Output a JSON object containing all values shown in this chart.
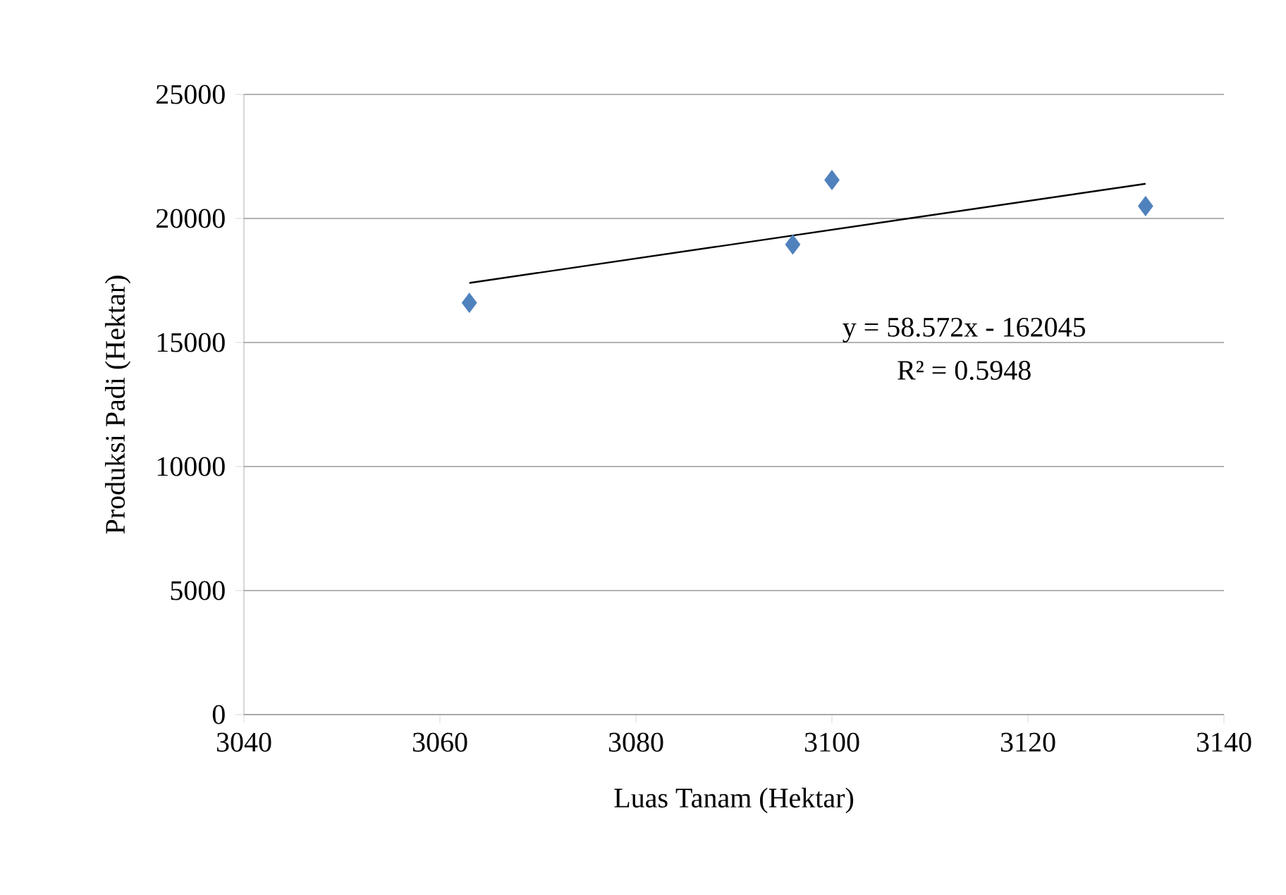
{
  "chart_data": {
    "type": "scatter",
    "xlabel": "Luas Tanam (Hektar)",
    "ylabel": "Produksi Padi (Hektar)",
    "xlim": [
      3040,
      3140
    ],
    "xticks": [
      3040,
      3060,
      3080,
      3100,
      3120,
      3140
    ],
    "ylim": [
      0,
      25000
    ],
    "yticks": [
      0,
      5000,
      10000,
      15000,
      20000,
      25000
    ],
    "grid": "y",
    "series": [
      {
        "color": "#4f81bd",
        "marker": "diamond",
        "x": [
          3063,
          3096,
          3100,
          3132
        ],
        "values": [
          16600,
          18950,
          21550,
          20500
        ]
      },
      {
        "type": "line",
        "color": "#000000",
        "marker": "none",
        "line_style": "solid",
        "x": [
          3063,
          3132
        ],
        "values": [
          17400,
          21400
        ]
      }
    ],
    "annotations": [
      "y = 58.572x - 162045",
      "R² = 0.5948"
    ]
  }
}
